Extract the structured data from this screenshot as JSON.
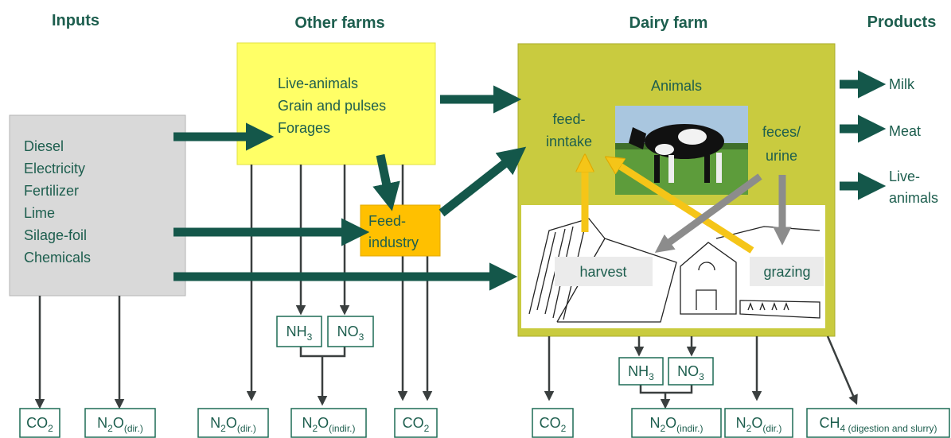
{
  "headers": {
    "inputs": "Inputs",
    "other_farms": "Other farms",
    "dairy_farm": "Dairy farm",
    "products": "Products"
  },
  "inputs": [
    "Diesel",
    "Electricity",
    "Fertilizer",
    "Lime",
    "Silage-foil",
    "Chemicals"
  ],
  "other_farms": [
    "Live-animals",
    "Grain and pulses",
    "Forages"
  ],
  "feed_industry": [
    "Feed-",
    "industry"
  ],
  "dairy": {
    "animals": "Animals",
    "feed_intake": [
      "feed-",
      "inntake"
    ],
    "feces_urine": [
      "feces/",
      "urine"
    ],
    "harvest": "harvest",
    "grazing": "grazing"
  },
  "products": [
    [
      "Milk"
    ],
    [
      "Meat"
    ],
    [
      "Live-",
      "animals"
    ]
  ],
  "intermediates": [
    {
      "base": "NH",
      "sub": "3"
    },
    {
      "base": "NO",
      "sub": "3"
    },
    {
      "base": "NH",
      "sub": "3"
    },
    {
      "base": "NO",
      "sub": "3"
    }
  ],
  "emissions": [
    {
      "base": "CO",
      "sub": "2"
    },
    {
      "base": "N",
      "sub": "2",
      "base2": "O",
      "sub2": "(dir.)"
    },
    {
      "base": "N",
      "sub": "2",
      "base2": "O",
      "sub2": "(dir.)"
    },
    {
      "base": "N",
      "sub": "2",
      "base2": "O",
      "sub2": "(indir.)"
    },
    {
      "base": "CO",
      "sub": "2"
    },
    {
      "base": "CO",
      "sub": "2"
    },
    {
      "base": "N",
      "sub": "2",
      "base2": "O",
      "sub2": "(indir.)"
    },
    {
      "base": "N",
      "sub": "2",
      "base2": "O",
      "sub2": "(dir.)"
    },
    {
      "base": "CH",
      "sub": "4 (digestion and slurry)"
    }
  ]
}
